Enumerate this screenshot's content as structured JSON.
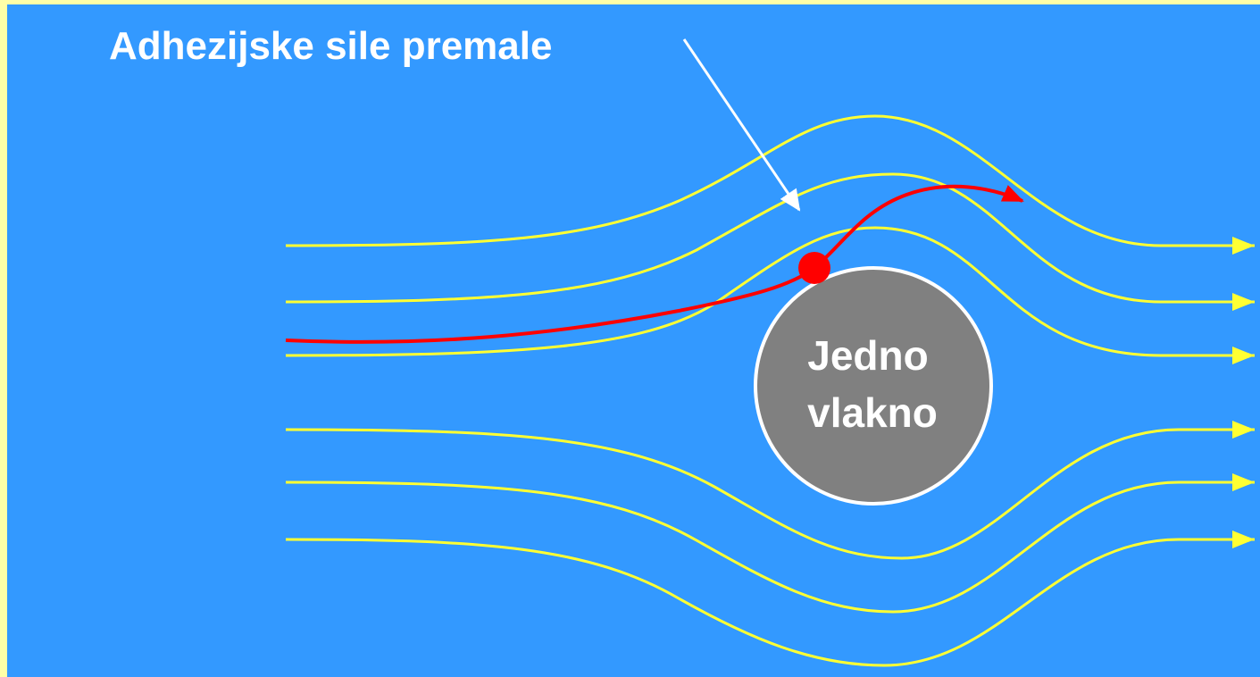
{
  "title": "Adhezijske sile premale",
  "fiber": {
    "lines": [
      "Jedno",
      "vlakno"
    ]
  }
}
